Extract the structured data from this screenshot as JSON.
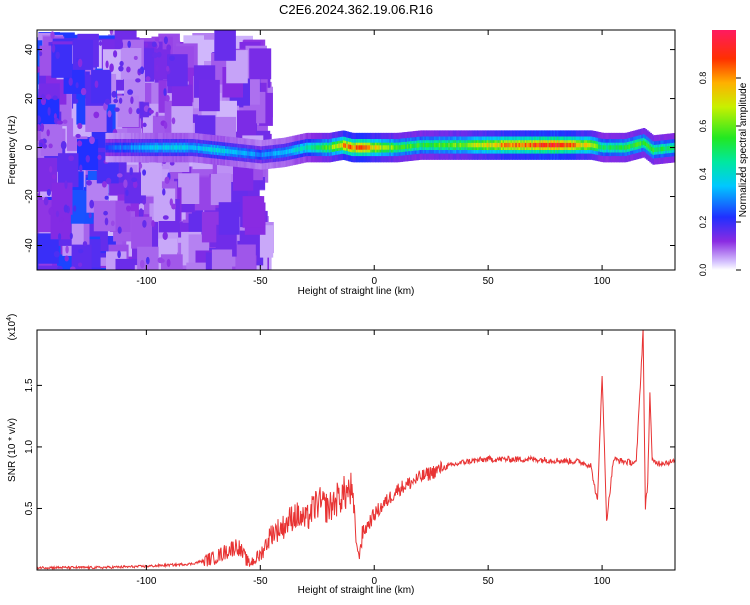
{
  "title": "C2E6.2024.362.19.06.R16",
  "chart_data": [
    {
      "type": "heatmap",
      "title": "C2E6.2024.362.19.06.R16",
      "xlabel": "Height of straight line (km)",
      "ylabel": "Frequency (Hz)",
      "xlim": [
        -148,
        132
      ],
      "ylim": [
        -50,
        48
      ],
      "x_ticks": [
        -100,
        -50,
        0,
        50,
        100
      ],
      "y_ticks": [
        -40,
        -20,
        0,
        20,
        40
      ],
      "ridge": {
        "x": [
          -118,
          -100,
          -90,
          -80,
          -70,
          -60,
          -50,
          -40,
          -30,
          -20,
          -14,
          -10,
          -5,
          0,
          10,
          20,
          40,
          60,
          80,
          95,
          100,
          110,
          118,
          122,
          132
        ],
        "freq": [
          0,
          0,
          0,
          0,
          -1,
          -2,
          -3,
          -2,
          0,
          0,
          1,
          0,
          0,
          0,
          0,
          1,
          1,
          1,
          1,
          1,
          0,
          0,
          2,
          -1,
          0
        ],
        "amplitude": [
          0.25,
          0.35,
          0.4,
          0.35,
          0.4,
          0.35,
          0.3,
          0.35,
          0.45,
          0.6,
          0.8,
          0.85,
          0.9,
          0.75,
          0.6,
          0.55,
          0.65,
          0.85,
          0.95,
          0.7,
          0.5,
          0.55,
          0.6,
          0.55,
          0.5
        ]
      },
      "colorbar": {
        "label": "Normalized spectral amplitude",
        "range": [
          0,
          1
        ],
        "ticks": [
          "0.0",
          "0.2",
          "0.4",
          "0.6",
          "0.8"
        ]
      }
    },
    {
      "type": "line",
      "title": "",
      "xlabel": "Height of straight line (km)",
      "ylabel": "SNR (10 * v/v)",
      "y_multiplier": "(x10",
      "y_multiplier_exp": "4",
      "xlim": [
        -148,
        132
      ],
      "ylim": [
        0,
        1.95
      ],
      "x_ticks": [
        -100,
        -50,
        0,
        50,
        100
      ],
      "y_ticks": [
        "0.5",
        "1.0",
        "1.5"
      ],
      "series": [
        {
          "name": "SNR",
          "color": "#e83333",
          "x": [
            -148,
            -120,
            -100,
            -80,
            -70,
            -65,
            -60,
            -55,
            -50,
            -45,
            -40,
            -35,
            -30,
            -25,
            -20,
            -15,
            -10,
            -7,
            -5,
            0,
            5,
            10,
            20,
            30,
            40,
            50,
            60,
            70,
            80,
            90,
            95,
            98,
            100,
            102,
            105,
            110,
            115,
            118,
            119,
            120,
            121,
            122,
            125,
            132
          ],
          "y": [
            0.02,
            0.02,
            0.03,
            0.05,
            0.1,
            0.15,
            0.2,
            0.05,
            0.12,
            0.3,
            0.35,
            0.45,
            0.4,
            0.55,
            0.5,
            0.6,
            0.65,
            0.1,
            0.3,
            0.45,
            0.55,
            0.65,
            0.75,
            0.83,
            0.88,
            0.9,
            0.9,
            0.9,
            0.89,
            0.88,
            0.85,
            0.55,
            1.6,
            0.4,
            0.9,
            0.88,
            0.87,
            1.95,
            0.5,
            0.7,
            1.45,
            0.88,
            0.87,
            0.88
          ]
        }
      ]
    }
  ]
}
